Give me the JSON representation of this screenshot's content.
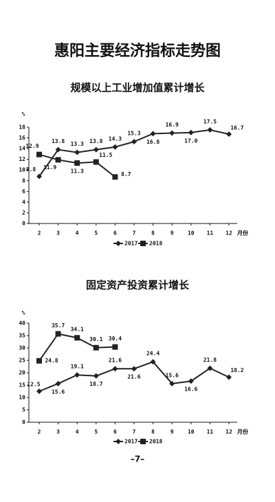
{
  "title": "惠阳主要经济指标走势图",
  "page_number": "–7–",
  "chart_data": [
    {
      "type": "line",
      "title": "规模以上工业增加值累计增长",
      "ylabel": "%",
      "xlabel": "月份",
      "categories": [
        "2",
        "3",
        "4",
        "5",
        "6",
        "7",
        "8",
        "9",
        "10",
        "11",
        "12"
      ],
      "ylim": [
        0,
        18
      ],
      "yticks": [
        0,
        2,
        4,
        6,
        8,
        10,
        12,
        14,
        16,
        18
      ],
      "legend": "bottom",
      "series": [
        {
          "name": "2017",
          "color": "#222222",
          "marker": "diamond",
          "values": [
            8.8,
            13.8,
            13.3,
            13.8,
            14.3,
            15.3,
            16.8,
            16.9,
            17.0,
            17.5,
            16.7
          ],
          "value_labels": [
            "8.8",
            "13.8",
            "13.3",
            "13.8",
            "14.3",
            "15.3",
            "16.8",
            "16.9",
            "17.0",
            "17.5",
            "16.7"
          ]
        },
        {
          "name": "2018",
          "color": "#222222",
          "marker": "square",
          "values": [
            12.9,
            11.9,
            11.3,
            11.5,
            8.7,
            null,
            null,
            null,
            null,
            null,
            null
          ],
          "value_labels": [
            "12.9",
            "11.9",
            "11.3",
            "11.5",
            "8.7",
            null,
            null,
            null,
            null,
            null,
            null
          ]
        }
      ]
    },
    {
      "type": "line",
      "title": "固定资产投资累计增长",
      "ylabel": "%",
      "xlabel": "月份",
      "categories": [
        "2",
        "3",
        "4",
        "5",
        "6",
        "7",
        "8",
        "9",
        "10",
        "11",
        "12"
      ],
      "ylim": [
        0,
        40
      ],
      "yticks": [
        0,
        5,
        10,
        15,
        20,
        25,
        30,
        35,
        40
      ],
      "legend": "bottom",
      "series": [
        {
          "name": "2017",
          "color": "#222222",
          "marker": "diamond",
          "values": [
            12.5,
            15.6,
            19.1,
            18.7,
            21.6,
            21.6,
            24.4,
            15.6,
            16.6,
            21.8,
            18.2
          ],
          "value_labels": [
            "12.5",
            "15.6",
            "19.1",
            "18.7",
            "21.6",
            "21.6",
            "24.4",
            "15.6",
            "16.6",
            "21.8",
            "18.2"
          ]
        },
        {
          "name": "2018",
          "color": "#222222",
          "marker": "square",
          "values": [
            24.8,
            35.7,
            34.1,
            30.1,
            30.4,
            null,
            null,
            null,
            null,
            null,
            null
          ],
          "value_labels": [
            "24.8",
            "35.7",
            "34.1",
            "30.1",
            "30.4",
            null,
            null,
            null,
            null,
            null,
            null
          ]
        }
      ]
    }
  ]
}
